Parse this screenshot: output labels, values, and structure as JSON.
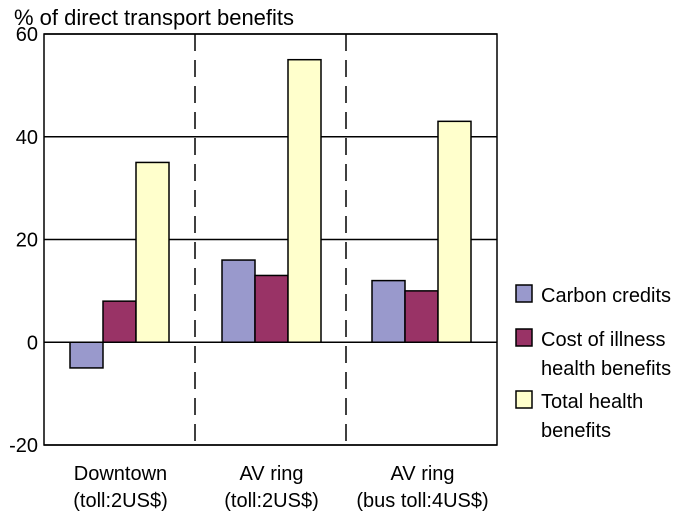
{
  "chart_data": {
    "type": "bar",
    "title": "% of direct transport benefits",
    "ylim": [
      -20,
      60
    ],
    "yticks": [
      60,
      40,
      20,
      0,
      -20
    ],
    "grid": "horizontal",
    "legend_position": "right",
    "categories": [
      {
        "line1": "Downtown",
        "line2": "(toll:2US$)"
      },
      {
        "line1": "AV ring",
        "line2": "(toll:2US$)"
      },
      {
        "line1": "AV ring",
        "line2": "(bus toll:4US$)"
      }
    ],
    "series": [
      {
        "name_lines": [
          "Carbon credits"
        ],
        "color": "#9999cc",
        "values": [
          -5,
          16,
          12
        ]
      },
      {
        "name_lines": [
          "Cost of illness",
          "health benefits"
        ],
        "color": "#993366",
        "values": [
          8,
          13,
          10
        ]
      },
      {
        "name_lines": [
          "Total health",
          "benefits"
        ],
        "color": "#ffffcc",
        "values": [
          35,
          55,
          43
        ]
      }
    ]
  }
}
